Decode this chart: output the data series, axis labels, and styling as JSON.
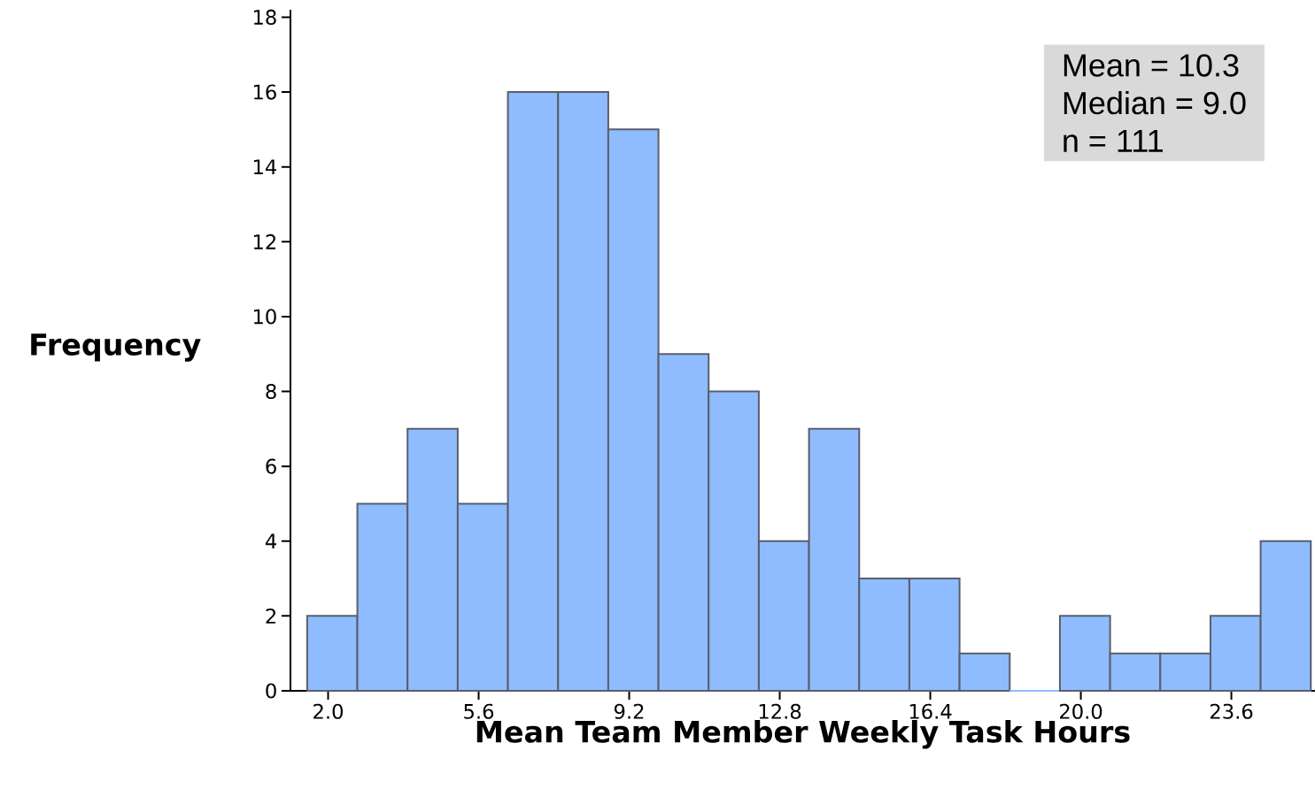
{
  "chart_data": {
    "type": "histogram",
    "xlabel": "Mean Team Member Weekly Task Hours",
    "ylabel": "Frequency",
    "bins": [
      1.5,
      2.7,
      3.9,
      5.1,
      6.3,
      7.5,
      8.7,
      9.9,
      11.1,
      12.3,
      13.5,
      14.7,
      15.9,
      17.1,
      18.3,
      19.5,
      20.7,
      21.9,
      23.1,
      24.3,
      25.5
    ],
    "values": [
      2,
      5,
      7,
      5,
      16,
      16,
      15,
      9,
      8,
      4,
      7,
      3,
      3,
      1,
      0,
      2,
      1,
      1,
      2,
      4
    ],
    "color": "#8fbcff",
    "xlim": [
      1.1,
      25.6
    ],
    "ylim": [
      0,
      18.2
    ],
    "xticks": [
      {
        "value": 2.0,
        "label": "2.0"
      },
      {
        "value": 5.6,
        "label": "5.6"
      },
      {
        "value": 9.2,
        "label": "9.2"
      },
      {
        "value": 12.8,
        "label": "12.8"
      },
      {
        "value": 16.4,
        "label": "16.4"
      },
      {
        "value": 20.0,
        "label": "20.0"
      },
      {
        "value": 23.6,
        "label": "23.6"
      }
    ],
    "yticks": [
      0,
      2,
      4,
      6,
      8,
      10,
      12,
      14,
      16,
      18
    ],
    "annotations": [
      "Mean      =   10.3",
      "Median  =     9.0",
      "n            =  111"
    ]
  }
}
